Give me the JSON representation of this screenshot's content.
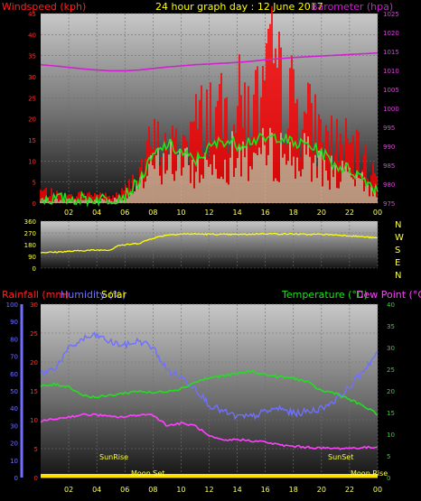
{
  "header": {
    "windspeed_label": "Windspeed (kph)",
    "title": "24 hour graph day : 12 June 2017",
    "barometer_label": "Barometer (hpa)",
    "rainfall_label": "Rainfall (mm)",
    "humidity_label": "Humidity (%)",
    "solar_label": "Solar",
    "temperature_label": "Temperature (°C)",
    "dewpoint_label": "Dew Point (°C)"
  },
  "colors": {
    "wind": "#ff0000",
    "wind_avg": "#20e020",
    "barometer": "#d020d0",
    "direction": "#ffff00",
    "rain": "#ff2020",
    "humidity": "#7070ff",
    "temperature": "#20e020",
    "dewpoint": "#ff40ff",
    "solar": "#ffff40",
    "grid": "#707070"
  },
  "chart_data": [
    {
      "type": "line",
      "name": "wind_barometer",
      "x_ticks": [
        "02",
        "04",
        "06",
        "08",
        "10",
        "12",
        "14",
        "16",
        "18",
        "20",
        "22",
        "00"
      ],
      "y_left_ticks": [
        0,
        5,
        10,
        15,
        20,
        25,
        30,
        35,
        40,
        45
      ],
      "ylim_left": [
        0,
        45
      ],
      "y_right_ticks": [
        975,
        980,
        985,
        990,
        995,
        1000,
        1005,
        1010,
        1015,
        1020,
        1025
      ],
      "ylim_right": [
        975,
        1025
      ],
      "xlim": [
        0,
        24
      ],
      "series": [
        {
          "name": "Windspeed (kph)",
          "axis": "left",
          "x": [
            0,
            1,
            2,
            3,
            4,
            5,
            6,
            7,
            8,
            9,
            10,
            11,
            12,
            13,
            14,
            15,
            16,
            16.5,
            17,
            18,
            19,
            20,
            21,
            22,
            23,
            24
          ],
          "values": [
            4,
            3,
            2,
            3,
            3,
            2,
            4,
            10,
            20,
            17,
            19,
            25,
            30,
            28,
            33,
            30,
            36,
            45,
            38,
            33,
            28,
            22,
            20,
            18,
            14,
            8
          ]
        },
        {
          "name": "Wind average",
          "axis": "left",
          "x": [
            0,
            1,
            2,
            3,
            4,
            5,
            6,
            7,
            8,
            9,
            10,
            11,
            12,
            13,
            14,
            15,
            16,
            17,
            18,
            19,
            20,
            21,
            22,
            23,
            24
          ],
          "values": [
            1,
            1,
            1,
            1,
            1,
            1,
            2,
            5,
            11,
            14,
            12,
            10,
            13,
            15,
            14,
            15,
            15,
            16,
            14,
            14,
            12,
            9,
            8,
            6,
            3
          ]
        },
        {
          "name": "Barometer (hpa)",
          "axis": "right",
          "x": [
            0,
            1,
            2,
            3,
            4,
            5,
            6,
            7,
            8,
            9,
            10,
            11,
            12,
            13,
            14,
            15,
            16,
            17,
            18,
            19,
            20,
            21,
            22,
            23,
            24
          ],
          "values": [
            1011.5,
            1011.2,
            1010.8,
            1010.4,
            1010.1,
            1009.9,
            1009.9,
            1010.1,
            1010.5,
            1010.9,
            1011.2,
            1011.5,
            1011.7,
            1011.9,
            1012.1,
            1012.4,
            1012.8,
            1013.1,
            1013.4,
            1013.6,
            1013.8,
            1014,
            1014.2,
            1014.4,
            1014.6
          ]
        }
      ]
    },
    {
      "type": "line",
      "name": "wind_direction",
      "x_ticks": [
        "02",
        "04",
        "06",
        "08",
        "10",
        "12",
        "14",
        "16",
        "18",
        "20",
        "22",
        "00"
      ],
      "y_ticks": [
        0,
        90,
        180,
        270,
        360
      ],
      "ylim": [
        0,
        360
      ],
      "y_right_ticks": [
        "N",
        "W",
        "S",
        "E",
        "N"
      ],
      "series": [
        {
          "name": "Direction",
          "x": [
            0,
            1,
            2,
            3,
            4,
            5,
            5.5,
            6,
            7,
            8,
            9,
            10,
            11,
            12,
            13,
            14,
            15,
            16,
            17,
            18,
            19,
            20,
            21,
            22,
            23,
            24
          ],
          "values": [
            120,
            122,
            128,
            135,
            138,
            140,
            175,
            178,
            190,
            230,
            255,
            262,
            262,
            260,
            258,
            258,
            260,
            265,
            262,
            262,
            258,
            260,
            255,
            248,
            240,
            230
          ]
        }
      ]
    },
    {
      "type": "line",
      "name": "rain_humidity_temperature",
      "x_ticks": [
        "02",
        "04",
        "06",
        "08",
        "10",
        "12",
        "14",
        "16",
        "18",
        "20",
        "22",
        "00"
      ],
      "y_left_ticks": [
        0,
        10,
        20,
        30,
        40,
        50,
        60,
        70,
        80,
        90,
        100
      ],
      "ylim_humidity": [
        0,
        100
      ],
      "y_rain_ticks": [
        0,
        5,
        10,
        15,
        20,
        25,
        30
      ],
      "ylim_rain": [
        0,
        30
      ],
      "y_right_ticks": [
        0,
        5,
        10,
        15,
        20,
        25,
        30,
        35,
        40
      ],
      "ylim_temperature": [
        0,
        40
      ],
      "annotations": [
        "SunRise",
        "Moon Set",
        "SunSet",
        "Moon Rise"
      ],
      "series": [
        {
          "name": "Humidity (%)",
          "axis": "humidity",
          "x": [
            0,
            1,
            2,
            3,
            4,
            5,
            6,
            7,
            8,
            9,
            10,
            11,
            12,
            13,
            14,
            15,
            16,
            17,
            18,
            19,
            20,
            21,
            22,
            23,
            24
          ],
          "values": [
            60,
            63,
            74,
            80,
            82,
            78,
            76,
            79,
            75,
            62,
            58,
            52,
            42,
            38,
            35,
            35,
            38,
            40,
            37,
            38,
            40,
            45,
            52,
            62,
            72
          ]
        },
        {
          "name": "Rainfall (mm)",
          "axis": "rain",
          "x": [
            0,
            24
          ],
          "values": [
            0,
            0
          ]
        },
        {
          "name": "Temperature (°C)",
          "axis": "temperature",
          "x": [
            0,
            1,
            2,
            3,
            4,
            5,
            6,
            7,
            8,
            9,
            10,
            11,
            12,
            13,
            14,
            15,
            16,
            17,
            18,
            19,
            20,
            21,
            22,
            23,
            24
          ],
          "values": [
            21,
            21.5,
            21,
            19,
            18.5,
            19,
            19.5,
            20,
            19.5,
            20,
            20.5,
            22,
            23,
            23.5,
            24,
            24.5,
            23.8,
            23.2,
            23,
            22,
            20,
            19.5,
            18,
            16.5,
            14.5
          ]
        },
        {
          "name": "Dew Point (°C)",
          "axis": "temperature",
          "x": [
            0,
            1,
            2,
            3,
            4,
            5,
            6,
            7,
            8,
            9,
            10,
            11,
            12,
            13,
            14,
            15,
            16,
            17,
            18,
            19,
            20,
            21,
            22,
            23,
            24
          ],
          "values": [
            13,
            13.5,
            14,
            14.5,
            14.5,
            14,
            14,
            14.5,
            14.5,
            12,
            12.5,
            12,
            9.5,
            8.5,
            8.8,
            8.5,
            8.2,
            7.5,
            7.2,
            7.0,
            6.8,
            6.7,
            6.8,
            6.9,
            7.0
          ]
        }
      ]
    }
  ]
}
